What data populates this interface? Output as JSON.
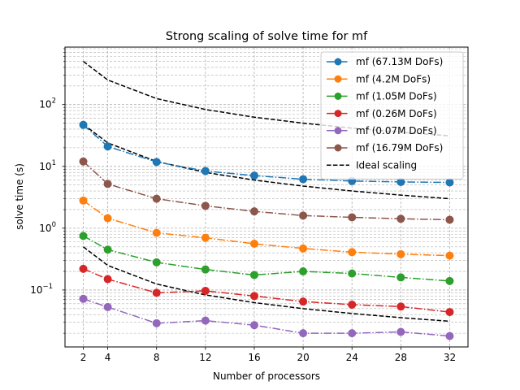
{
  "chart_data": {
    "type": "line",
    "title": "Strong scaling of solve time for mf",
    "xlabel": "Number of processors",
    "ylabel": "solve time (s)",
    "x": [
      2,
      4,
      8,
      12,
      16,
      20,
      24,
      28,
      32
    ],
    "xticks": [
      "2",
      "4",
      "8",
      "12",
      "16",
      "20",
      "24",
      "28",
      "32"
    ],
    "xlim": [
      0.5,
      33.5
    ],
    "yscale": "log",
    "ylim": [
      0.012,
      850
    ],
    "yticks": [
      {
        "value": 0.1,
        "label": "10",
        "exp": "−1"
      },
      {
        "value": 1,
        "label": "10",
        "exp": "0"
      },
      {
        "value": 10,
        "label": "10",
        "exp": "1"
      },
      {
        "value": 100,
        "label": "10",
        "exp": "2"
      }
    ],
    "grid": true,
    "grid_which": "both",
    "legend_position": "top-right",
    "series": [
      {
        "name": "mf (67.13M DoFs)",
        "color": "#1f77b4",
        "style": "dashdot-marker",
        "values": [
          47.0,
          21.0,
          11.8,
          8.4,
          7.1,
          6.2,
          5.8,
          5.6,
          5.5
        ]
      },
      {
        "name": "mf (4.2M DoFs)",
        "color": "#ff7f0e",
        "style": "dashdot-marker",
        "values": [
          2.8,
          1.45,
          0.84,
          0.7,
          0.56,
          0.47,
          0.41,
          0.38,
          0.36
        ]
      },
      {
        "name": "mf (1.05M DoFs)",
        "color": "#2ca02c",
        "style": "dashdot-marker",
        "values": [
          0.75,
          0.45,
          0.28,
          0.215,
          0.175,
          0.2,
          0.185,
          0.16,
          0.14
        ]
      },
      {
        "name": "mf (0.26M DoFs)",
        "color": "#d62728",
        "style": "dashdot-marker",
        "values": [
          0.22,
          0.15,
          0.09,
          0.097,
          0.08,
          0.065,
          0.058,
          0.054,
          0.044
        ]
      },
      {
        "name": "mf (0.07M DoFs)",
        "color": "#9467bd",
        "style": "dashdot-marker",
        "values": [
          0.072,
          0.053,
          0.029,
          0.032,
          0.027,
          0.02,
          0.02,
          0.021,
          0.018
        ]
      },
      {
        "name": "mf (16.79M DoFs)",
        "color": "#8c564b",
        "style": "dashdot-marker",
        "values": [
          12.0,
          5.2,
          3.0,
          2.3,
          1.87,
          1.6,
          1.5,
          1.42,
          1.37
        ]
      },
      {
        "name": "Ideal scaling",
        "color": "#000000",
        "style": "dashed",
        "values": [
          500,
          250,
          125,
          83.3,
          62.5,
          50,
          41.7,
          35.7,
          31.25
        ]
      }
    ],
    "ideal_extra_lines": [
      {
        "color": "#000000",
        "style": "dashed",
        "values": [
          48,
          24,
          12,
          8,
          6,
          4.8,
          4.0,
          3.43,
          3.0
        ]
      },
      {
        "color": "#000000",
        "style": "dashed",
        "values": [
          0.5,
          0.25,
          0.125,
          0.0833,
          0.0625,
          0.05,
          0.0417,
          0.0357,
          0.03125
        ]
      }
    ]
  }
}
